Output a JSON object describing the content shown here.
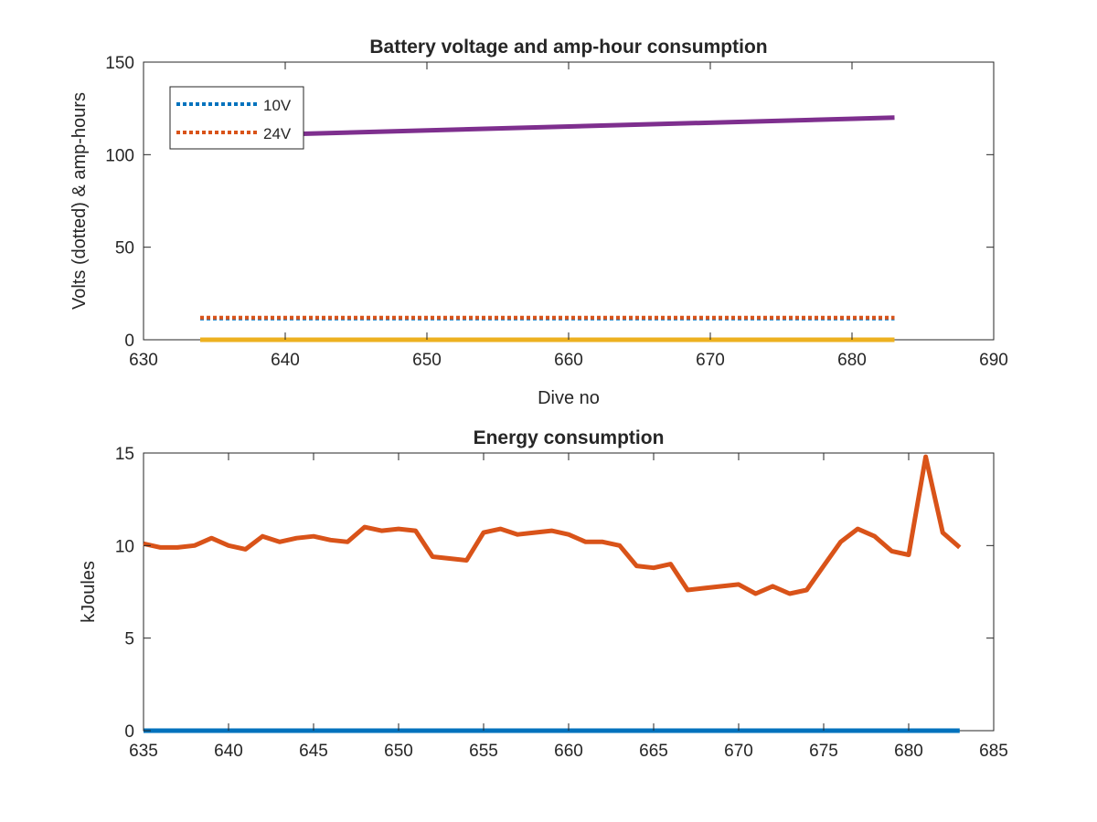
{
  "chart_data": [
    {
      "type": "line",
      "title": "Battery voltage and amp-hour consumption",
      "xlabel": "Dive no",
      "ylabel": "Volts (dotted) & amp-hours",
      "xlim": [
        630,
        690
      ],
      "ylim": [
        0,
        150
      ],
      "xticks": [
        "630",
        "640",
        "650",
        "660",
        "670",
        "680",
        "690"
      ],
      "yticks": [
        "0",
        "50",
        "100",
        "150"
      ],
      "legend": {
        "position": "top-left"
      },
      "series": [
        {
          "name": "10V",
          "color": "#0072BD",
          "style": "dotted",
          "in_legend": true,
          "x": [
            634,
            683
          ],
          "y": [
            11.5,
            11.5
          ]
        },
        {
          "name": "24V",
          "color": "#D95319",
          "style": "dotted",
          "in_legend": true,
          "x": [
            634,
            683
          ],
          "y": [
            12,
            12
          ]
        },
        {
          "color": "#EDB120",
          "style": "solid",
          "in_legend": false,
          "x": [
            634,
            683
          ],
          "y": [
            0,
            0
          ]
        },
        {
          "color": "#7E2F8E",
          "style": "solid",
          "in_legend": false,
          "x": [
            640,
            683
          ],
          "y": [
            111,
            120
          ]
        }
      ]
    },
    {
      "type": "line",
      "title": "Energy consumption",
      "xlabel": "",
      "ylabel": "kJoules",
      "xlim": [
        635,
        685
      ],
      "ylim": [
        0,
        15
      ],
      "xticks": [
        "635",
        "640",
        "645",
        "650",
        "655",
        "660",
        "665",
        "670",
        "675",
        "680",
        "685"
      ],
      "yticks": [
        "0",
        "5",
        "10",
        "15"
      ],
      "series": [
        {
          "color": "#0072BD",
          "style": "solid",
          "x": [
            635,
            683
          ],
          "y": [
            0,
            0
          ]
        },
        {
          "color": "#D95319",
          "style": "solid",
          "x": [
            635,
            636,
            637,
            638,
            639,
            640,
            641,
            642,
            643,
            644,
            645,
            646,
            647,
            648,
            649,
            650,
            651,
            652,
            653,
            654,
            655,
            656,
            657,
            658,
            659,
            660,
            661,
            662,
            663,
            664,
            665,
            666,
            667,
            668,
            669,
            670,
            671,
            672,
            673,
            674,
            675,
            676,
            677,
            678,
            679,
            680,
            681,
            682,
            683
          ],
          "y": [
            10.1,
            9.9,
            9.9,
            10.0,
            10.4,
            10.0,
            9.8,
            10.5,
            10.2,
            10.4,
            10.5,
            10.3,
            10.2,
            11.0,
            10.8,
            10.9,
            10.8,
            9.4,
            9.3,
            9.2,
            10.7,
            10.9,
            10.6,
            10.7,
            10.8,
            10.6,
            10.2,
            10.2,
            10.0,
            8.9,
            8.8,
            9.0,
            7.6,
            7.7,
            7.8,
            7.9,
            7.4,
            7.8,
            7.4,
            7.6,
            8.9,
            10.2,
            10.9,
            10.5,
            9.7,
            9.5,
            14.8,
            10.7,
            9.9
          ]
        }
      ]
    }
  ]
}
